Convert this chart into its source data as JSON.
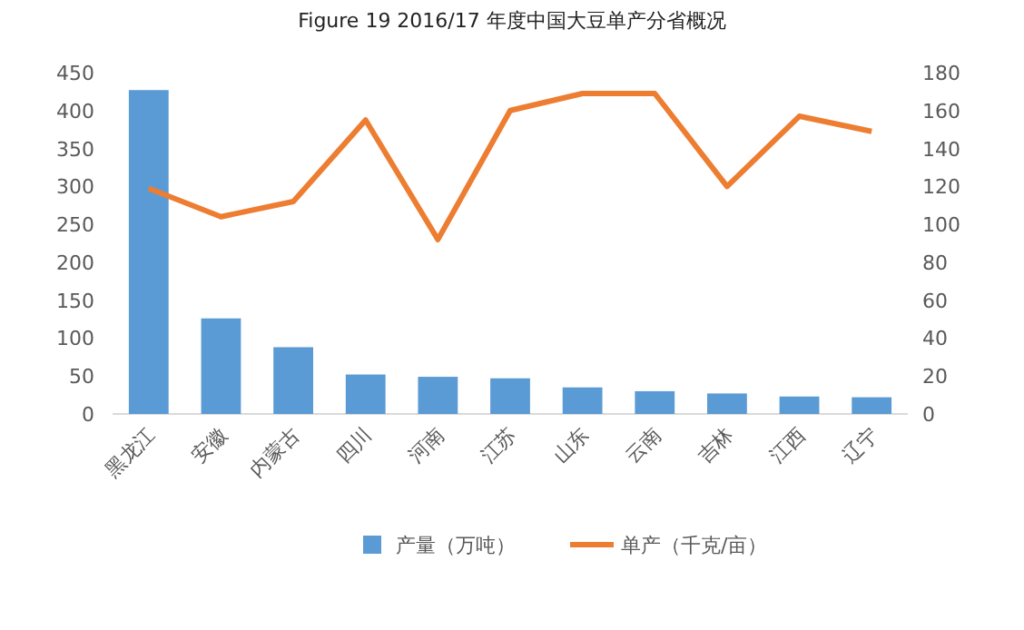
{
  "chart_data": {
    "type": "bar",
    "title": "Figure 19 2016/17 年度中国大豆单产分省概况",
    "categories": [
      "黑龙江",
      "安徽",
      "内蒙古",
      "四川",
      "河南",
      "江苏",
      "山东",
      "云南",
      "吉林",
      "江西",
      "辽宁"
    ],
    "series": [
      {
        "name": "产量（万吨）",
        "color": "#5b9bd5",
        "values": [
          427,
          126,
          88,
          52,
          49,
          47,
          35,
          30,
          27,
          23,
          22
        ]
      },
      {
        "name": "单产（千克/亩）",
        "color": "#ed7d31",
        "type": "line",
        "axis": "y2",
        "values": [
          119,
          104,
          112,
          155,
          92,
          160,
          169,
          169,
          120,
          157,
          149
        ]
      }
    ],
    "ylim": [
      0,
      450
    ],
    "yticks": [
      0,
      50,
      100,
      150,
      200,
      250,
      300,
      350,
      400,
      450
    ],
    "y2lim": [
      0,
      180
    ],
    "y2ticks": [
      0,
      20,
      40,
      60,
      80,
      100,
      120,
      140,
      160,
      180
    ],
    "legend": "bottom"
  }
}
